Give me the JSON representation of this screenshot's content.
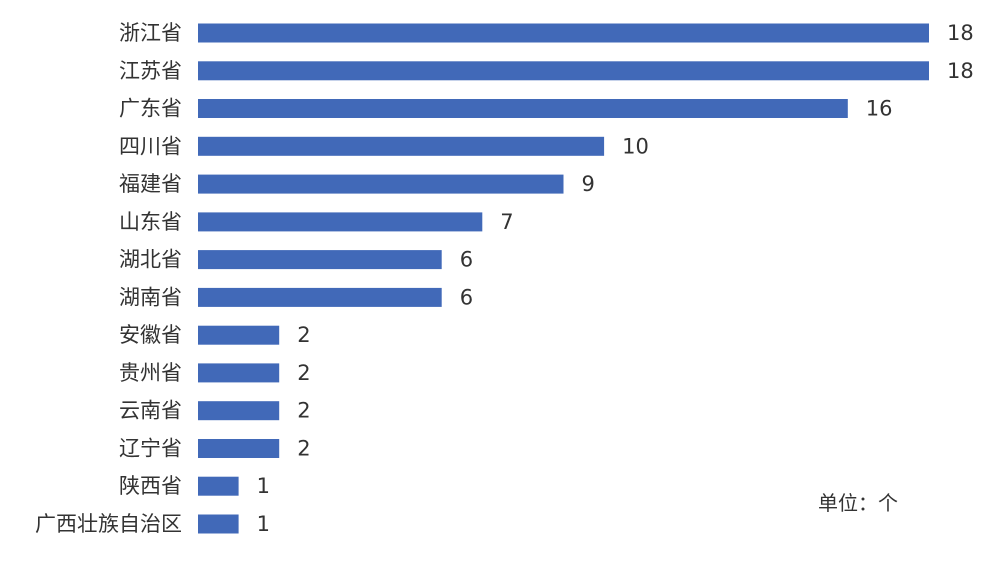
{
  "chart_data": {
    "type": "bar",
    "orientation": "horizontal",
    "categories": [
      "浙江省",
      "江苏省",
      "广东省",
      "四川省",
      "福建省",
      "山东省",
      "湖北省",
      "湖南省",
      "安徽省",
      "贵州省",
      "云南省",
      "辽宁省",
      "陕西省",
      "广西壮族自治区"
    ],
    "values": [
      18,
      18,
      16,
      10,
      9,
      7,
      6,
      6,
      2,
      2,
      2,
      2,
      1,
      1
    ],
    "xlim": [
      0,
      18
    ],
    "grid": false,
    "legend": "none",
    "bar_color": "#4169b8",
    "note": "单位：个"
  }
}
